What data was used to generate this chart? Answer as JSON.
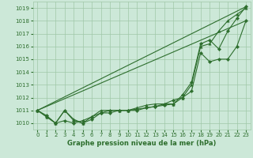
{
  "x": [
    0,
    1,
    2,
    3,
    4,
    5,
    6,
    7,
    8,
    9,
    10,
    11,
    12,
    13,
    14,
    15,
    16,
    17,
    18,
    19,
    20,
    21,
    22,
    23
  ],
  "series1": [
    1011.0,
    1010.5,
    1010.0,
    1011.0,
    1010.2,
    1010.0,
    1010.3,
    1010.8,
    1010.8,
    1011.0,
    1011.0,
    1011.1,
    1011.2,
    1011.3,
    1011.4,
    1011.5,
    1012.2,
    1013.2,
    1016.2,
    1016.5,
    1015.8,
    1017.2,
    1018.2,
    1019.1
  ],
  "series2": [
    1011.0,
    1010.6,
    1010.0,
    1010.2,
    1010.0,
    1010.2,
    1010.5,
    1010.8,
    1011.0,
    1011.0,
    1011.0,
    1011.0,
    1011.2,
    1011.3,
    1011.5,
    1011.8,
    1012.0,
    1012.5,
    1015.5,
    1014.8,
    1015.0,
    1015.0,
    1016.0,
    1018.0
  ],
  "series3": [
    1011.0,
    1010.5,
    1010.0,
    1011.0,
    1010.3,
    1010.0,
    1010.5,
    1011.0,
    1011.0,
    1011.0,
    1011.0,
    1011.2,
    1011.4,
    1011.5,
    1011.5,
    1011.5,
    1012.0,
    1013.0,
    1016.0,
    1016.2,
    1017.2,
    1018.0,
    1018.5,
    1019.0
  ],
  "trend1_x": [
    0,
    23
  ],
  "trend1_y": [
    1011.0,
    1019.1
  ],
  "trend2_x": [
    0,
    23
  ],
  "trend2_y": [
    1011.0,
    1018.0
  ],
  "line_color": "#2d6e2d",
  "bg_color": "#cce8d8",
  "grid_color": "#a0c8a8",
  "xlabel": "Graphe pression niveau de la mer (hPa)",
  "ylim": [
    1009.5,
    1019.5
  ],
  "xlim": [
    -0.5,
    23.5
  ],
  "yticks": [
    1010,
    1011,
    1012,
    1013,
    1014,
    1015,
    1016,
    1017,
    1018,
    1019
  ],
  "xticks": [
    0,
    1,
    2,
    3,
    4,
    5,
    6,
    7,
    8,
    9,
    10,
    11,
    12,
    13,
    14,
    15,
    16,
    17,
    18,
    19,
    20,
    21,
    22,
    23
  ]
}
